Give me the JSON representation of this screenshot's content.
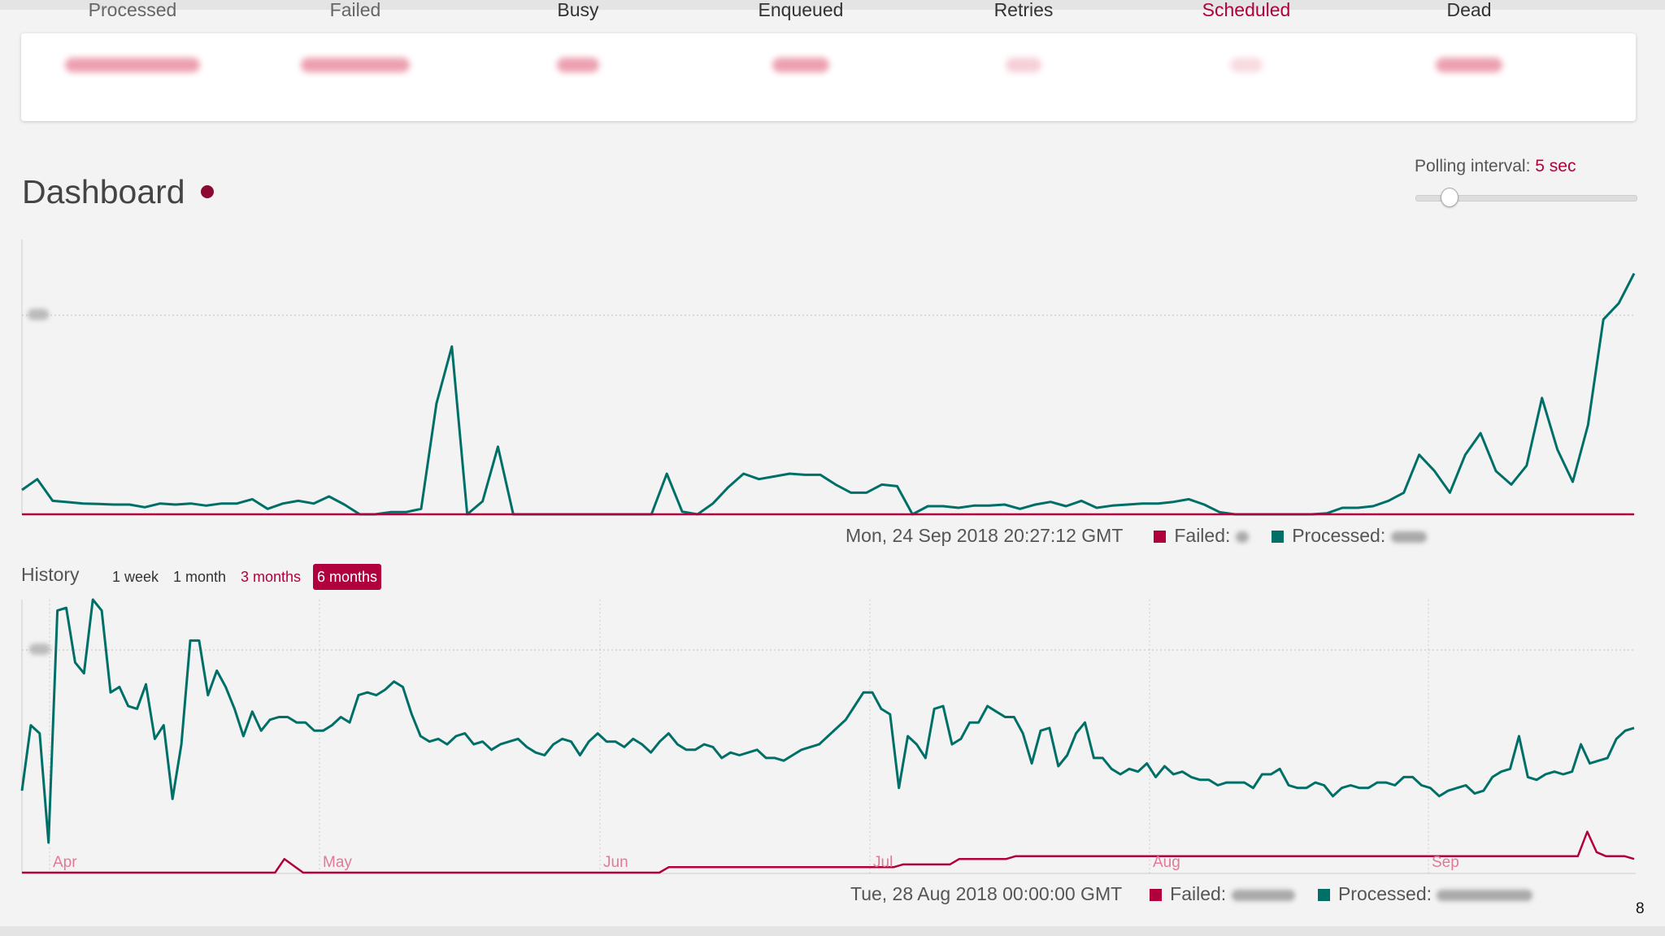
{
  "stats": [
    {
      "label": "Processed",
      "color": "#666666"
    },
    {
      "label": "Failed",
      "color": "#666666"
    },
    {
      "label": "Busy",
      "color": "#333333"
    },
    {
      "label": "Enqueued",
      "color": "#333333"
    },
    {
      "label": "Retries",
      "color": "#333333"
    },
    {
      "label": "Scheduled",
      "color": "#b1003e"
    },
    {
      "label": "Dead",
      "color": "#333333"
    }
  ],
  "header": {
    "title": "Dashboard",
    "live_indicator_color": "#8b0a32"
  },
  "polling": {
    "label": "Polling interval:",
    "value": "5 sec",
    "slider_level_fraction": 0.15
  },
  "realtime": {
    "timestamp": "Mon, 24 Sep 2018 20:27:12 GMT",
    "failed_label": "Failed:",
    "processed_label": "Processed:"
  },
  "history": {
    "label": "History",
    "ranges": [
      "1 week",
      "1 month",
      "3 months",
      "6 months"
    ],
    "active_range": "6 months",
    "timestamp": "Tue, 28 Aug 2018 00:00:00 GMT",
    "failed_label": "Failed:",
    "processed_label": "Processed:"
  },
  "colors": {
    "failed": "#b1003e",
    "processed": "#006f68",
    "accent": "#b1003e"
  },
  "page_number": "8",
  "chart_data": [
    {
      "type": "line",
      "title": "",
      "note": "realtime chart; y axis values blurred, scale normalized to 0-100",
      "ylim": [
        0,
        100
      ],
      "grid": "one horizontal dotted line",
      "series": [
        {
          "name": "Failed",
          "color": "#b1003e",
          "values": [
            0,
            0,
            0,
            0,
            0,
            0,
            0,
            0,
            0,
            0,
            0,
            0,
            0,
            0,
            0,
            0,
            0,
            0,
            0,
            0,
            0,
            0,
            0,
            0,
            0,
            0,
            0,
            0,
            0,
            0,
            0,
            0,
            0,
            0,
            0,
            0,
            0,
            0,
            0,
            0,
            0,
            0,
            0,
            0,
            0,
            0,
            0,
            0,
            0,
            0,
            0,
            0,
            0,
            0,
            0,
            0,
            0,
            0,
            0,
            0,
            0,
            0,
            0,
            0,
            0,
            0,
            0,
            0,
            0,
            0,
            0,
            0,
            0,
            0,
            0,
            0,
            0,
            0,
            0,
            0,
            0,
            0,
            0,
            0,
            0,
            0,
            0,
            0,
            0,
            0,
            0,
            0,
            0,
            0,
            0,
            0,
            0,
            0,
            0,
            0
          ]
        },
        {
          "name": "Processed",
          "color": "#006f68",
          "values": [
            9,
            13,
            5,
            4.5,
            4,
            3.8,
            3.6,
            3.6,
            2.6,
            4,
            3.6,
            4,
            3.2,
            4,
            4,
            5.6,
            2,
            4,
            5,
            4,
            6.6,
            3.6,
            0,
            0,
            0.8,
            0.8,
            2,
            41,
            62,
            0,
            4.8,
            25,
            0,
            0,
            0,
            0,
            0,
            0,
            0,
            0,
            0,
            0,
            15,
            1,
            0,
            4,
            10,
            15,
            13,
            14,
            15,
            14.6,
            14.6,
            11,
            8,
            8,
            11,
            10.4,
            0,
            3,
            3,
            2.4,
            3.2,
            3.2,
            3.6,
            2,
            3.6,
            4.6,
            3,
            5,
            2.4,
            3.2,
            3.6,
            4,
            4,
            4.6,
            5.6,
            3.6,
            0.8,
            0,
            0,
            0,
            0,
            0,
            0,
            0.4,
            2.4,
            2.4,
            3,
            5,
            8,
            22,
            16,
            8,
            22,
            30,
            16,
            11,
            18,
            43,
            24,
            12,
            33,
            72,
            78,
            89
          ]
        }
      ]
    },
    {
      "type": "line",
      "title": "",
      "note": "history chart (6 months); y axis values blurred, scale normalized to 0-100",
      "x_tick_labels": [
        "Apr",
        "May",
        "Jun",
        "Jul",
        "Aug",
        "Sep"
      ],
      "ylim": [
        0,
        100
      ],
      "grid": "vertical month gridlines and one horizontal dotted line",
      "series": [
        {
          "name": "Failed",
          "color": "#b1003e",
          "values": [
            0,
            0,
            0,
            0,
            0,
            0,
            0,
            0,
            0,
            0,
            0,
            0,
            0,
            0,
            0,
            0,
            0,
            0,
            0,
            0,
            0,
            0,
            0,
            0,
            0,
            0,
            0,
            0,
            1,
            0.5,
            0,
            0,
            0,
            0,
            0,
            0,
            0,
            0,
            0,
            0,
            0,
            0,
            0,
            0,
            0,
            0,
            0,
            0,
            0,
            0,
            0,
            0,
            0,
            0,
            0,
            0,
            0,
            0,
            0,
            0,
            0,
            0,
            0,
            0,
            0,
            0,
            0,
            0,
            0,
            0.4,
            0.4,
            0.4,
            0.4,
            0.4,
            0.4,
            0.4,
            0.4,
            0.4,
            0.4,
            0.4,
            0.4,
            0.4,
            0.4,
            0.4,
            0.4,
            0.4,
            0.4,
            0.4,
            0.4,
            0.4,
            0.4,
            0.4,
            0.4,
            0.4,
            0.6,
            0.6,
            0.6,
            0.6,
            0.6,
            0.6,
            1,
            1,
            1,
            1,
            1,
            1,
            1.2,
            1.2,
            1.2,
            1.2,
            1.2,
            1.2,
            1.2,
            1.2,
            1.2,
            1.2,
            1.2,
            1.2,
            1.2,
            1.2,
            1.2,
            1.2,
            1.2,
            1.2,
            1.2,
            1.2,
            1.2,
            1.2,
            1.2,
            1.2,
            1.2,
            1.2,
            1.2,
            1.2,
            1.2,
            1.2,
            1.2,
            1.2,
            1.2,
            1.2,
            1.2,
            1.2,
            1.2,
            1.2,
            1.2,
            1.2,
            1.2,
            1.2,
            1.2,
            1.2,
            1.2,
            1.2,
            1.2,
            1.2,
            1.2,
            1.2,
            1.2,
            1.2,
            1.2,
            1.2,
            1.2,
            1.2,
            1.2,
            1.2,
            1.2,
            1.2,
            1.2,
            3,
            1.5,
            1.2,
            1.2,
            1.2,
            1
          ]
        },
        {
          "name": "Processed",
          "color": "#006f68",
          "values": [
            30,
            54,
            51,
            11,
            96,
            97,
            77,
            73,
            100,
            96,
            66,
            68,
            61,
            60,
            69,
            49,
            54,
            27,
            47,
            85,
            85,
            65,
            74,
            68,
            60,
            50,
            59,
            52,
            56,
            57,
            57,
            55,
            55,
            52,
            52,
            54,
            57,
            55,
            65,
            66,
            65,
            67,
            70,
            68,
            58,
            50,
            48,
            49,
            47,
            50,
            51,
            47,
            48,
            45,
            47,
            48,
            49,
            46,
            44,
            43,
            47,
            49,
            48,
            43,
            48,
            51,
            48,
            48,
            46,
            49,
            47,
            44,
            48,
            51,
            47,
            45,
            45,
            47,
            46,
            42,
            44,
            43,
            44,
            45,
            42,
            42,
            41,
            43,
            45,
            46,
            47,
            50,
            53,
            56,
            61,
            66,
            66,
            60,
            58,
            31,
            50,
            47,
            42,
            60,
            61,
            47,
            49,
            55,
            55,
            61,
            59,
            57,
            57,
            51,
            40,
            52,
            53,
            39,
            43,
            51,
            55,
            42,
            42,
            38,
            36,
            38,
            37,
            40,
            35,
            39,
            36,
            37,
            35,
            34,
            34,
            32,
            33,
            33,
            33,
            31,
            36,
            36,
            38,
            32,
            31,
            31,
            33,
            32,
            28,
            31,
            32,
            31,
            31,
            33,
            33,
            32,
            35,
            35,
            32,
            31,
            28,
            30,
            31,
            32,
            29,
            30,
            35,
            37,
            38,
            50,
            35,
            34,
            36,
            37,
            36,
            37,
            47,
            40,
            41,
            42,
            49,
            52,
            53
          ]
        }
      ]
    }
  ]
}
